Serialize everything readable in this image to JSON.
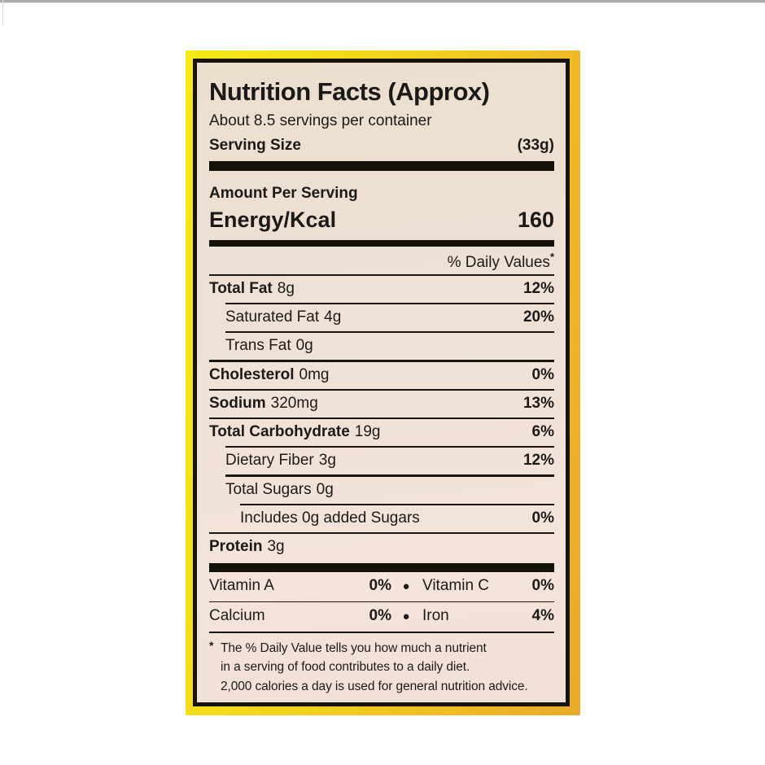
{
  "label": {
    "title": "Nutrition Facts (Approx)",
    "servings_per_container": "About 8.5 servings per container",
    "serving_size_label": "Serving Size",
    "serving_size_value": "(33g)",
    "amount_per_serving": "Amount Per Serving",
    "energy_label": "Energy/Kcal",
    "energy_value": "160",
    "daily_values_header": "% Daily Values",
    "daily_values_asterisk": "*",
    "nutrients": [
      {
        "name": "Total Fat",
        "amount": "8g",
        "dv": "12%"
      },
      {
        "name": "Saturated Fat",
        "amount": "4g",
        "dv": "20%"
      },
      {
        "name": "Trans Fat",
        "amount": "0g",
        "dv": ""
      },
      {
        "name": "Cholesterol",
        "amount": "0mg",
        "dv": "0%"
      },
      {
        "name": "Sodium",
        "amount": "320mg",
        "dv": "13%"
      },
      {
        "name": "Total Carbohydrate",
        "amount": "19g",
        "dv": "6%"
      },
      {
        "name": "Dietary Fiber",
        "amount": "3g",
        "dv": "12%"
      },
      {
        "name": "Total Sugars",
        "amount": "0g",
        "dv": ""
      },
      {
        "name": "Includes 0g added Sugars",
        "amount": "",
        "dv": "0%"
      },
      {
        "name": "Protein",
        "amount": "3g",
        "dv": ""
      }
    ],
    "micronutrients": [
      {
        "left_name": "Vitamin A",
        "left_value": "0%",
        "separator": "●",
        "right_name": "Vitamin C",
        "right_value": "0%"
      },
      {
        "left_name": "Calcium",
        "left_value": "0%",
        "separator": "●",
        "right_name": "Iron",
        "right_value": "4%"
      }
    ],
    "footnote_asterisk": "*",
    "footnote_lines": [
      "The % Daily Value tells you how much a nutrient",
      "in a serving of food contributes to a daily diet.",
      "2,000 calories a day is used for general nutrition advice."
    ]
  },
  "colors": {
    "border_yellow": "#f2d21d",
    "label_background": "#efe2d6",
    "bar_black": "#141109",
    "text": "#1c1a18"
  }
}
